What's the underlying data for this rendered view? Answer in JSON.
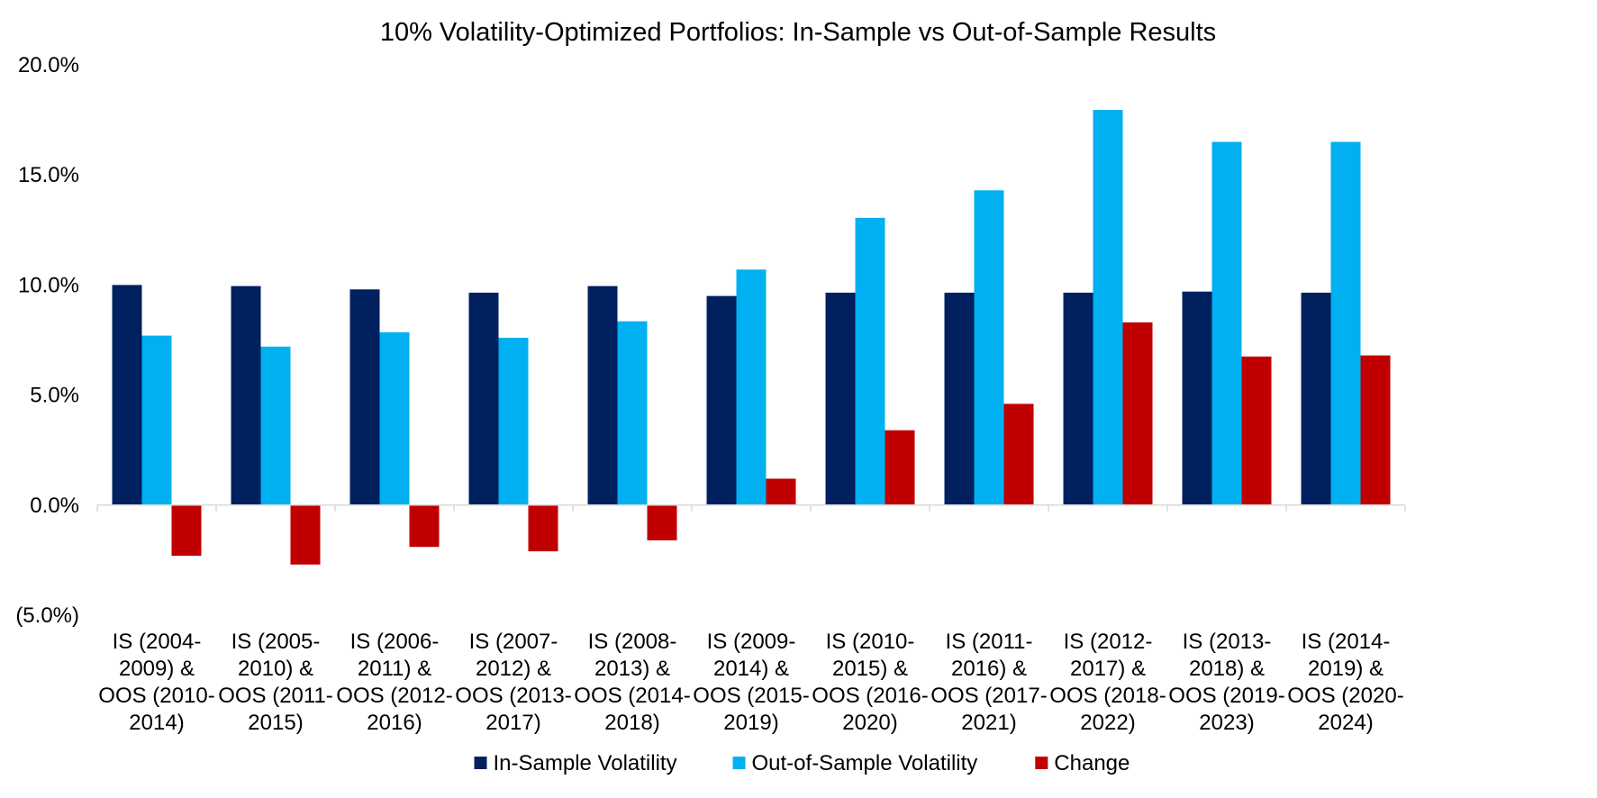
{
  "chart_data": {
    "type": "bar",
    "title": "10% Volatility-Optimized Portfolios: In-Sample vs Out-of-Sample Results",
    "xlabel": "",
    "ylabel": "",
    "ylim": [
      -5.0,
      20.0
    ],
    "yticks": [
      20.0,
      15.0,
      10.0,
      5.0,
      0.0,
      -5.0
    ],
    "ytick_labels": [
      "20.0%",
      "15.0%",
      "10.0%",
      "5.0%",
      "0.0%",
      "(5.0%)"
    ],
    "grid": false,
    "legend_position": "bottom",
    "categories": [
      [
        "IS (2004-",
        "2009) &",
        "OOS (2010-",
        "2014)"
      ],
      [
        "IS (2005-",
        "2010) &",
        "OOS (2011-",
        "2015)"
      ],
      [
        "IS (2006-",
        "2011) &",
        "OOS (2012-",
        "2016)"
      ],
      [
        "IS (2007-",
        "2012) &",
        "OOS (2013-",
        "2017)"
      ],
      [
        "IS (2008-",
        "2013) &",
        "OOS (2014-",
        "2018)"
      ],
      [
        "IS (2009-",
        "2014) &",
        "OOS (2015-",
        "2019)"
      ],
      [
        "IS (2010-",
        "2015) &",
        "OOS (2016-",
        "2020)"
      ],
      [
        "IS (2011-",
        "2016) &",
        "OOS (2017-",
        "2021)"
      ],
      [
        "IS (2012-",
        "2017) &",
        "OOS (2018-",
        "2022)"
      ],
      [
        "IS (2013-",
        "2018) &",
        "OOS (2019-",
        "2023)"
      ],
      [
        "IS (2014-",
        "2019) &",
        "OOS (2020-",
        "2024)"
      ]
    ],
    "series": [
      {
        "name": "In-Sample Volatility",
        "color": "#002060",
        "values": [
          10.0,
          9.95,
          9.8,
          9.65,
          9.95,
          9.5,
          9.65,
          9.65,
          9.65,
          9.7,
          9.65
        ]
      },
      {
        "name": "Out-of-Sample Volatility",
        "color": "#00B0F0",
        "values": [
          7.7,
          7.2,
          7.85,
          7.6,
          8.35,
          10.7,
          13.05,
          14.3,
          17.95,
          16.5,
          16.5
        ]
      },
      {
        "name": "Change",
        "color": "#C00000",
        "values": [
          -2.3,
          -2.7,
          -1.9,
          -2.1,
          -1.6,
          1.2,
          3.4,
          4.6,
          8.3,
          6.75,
          6.8
        ]
      }
    ]
  }
}
